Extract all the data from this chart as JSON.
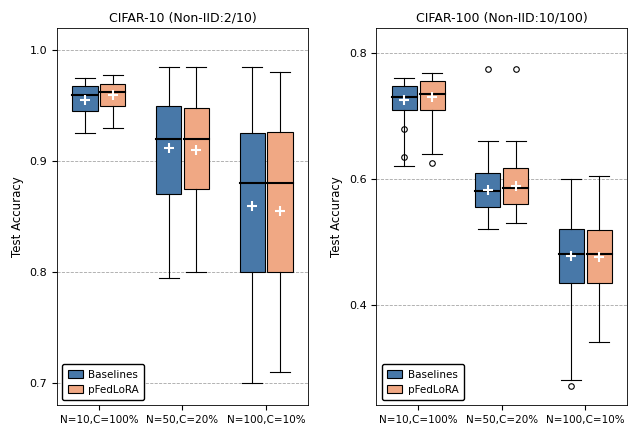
{
  "left_title": "CIFAR-10 (Non-IID:2/10)",
  "right_title": "CIFAR-100 (Non-IID:10/100)",
  "ylabel": "Test Accuracy",
  "xtick_labels": [
    "N=10,C=100%",
    "N=50,C=20%",
    "N=100,C=10%"
  ],
  "baseline_color": "#4878a8",
  "pfedlora_color": "#f0a884",
  "left_ylim": [
    0.68,
    1.02
  ],
  "right_ylim": [
    0.24,
    0.84
  ],
  "left_yticks": [
    0.7,
    0.8,
    0.9,
    1.0
  ],
  "right_yticks": [
    0.4,
    0.6,
    0.8
  ],
  "left": {
    "baselines": [
      {
        "whislo": 0.925,
        "q1": 0.945,
        "med": 0.96,
        "q3": 0.968,
        "whishi": 0.975,
        "mean": 0.955,
        "fliers": []
      },
      {
        "whislo": 0.795,
        "q1": 0.87,
        "med": 0.92,
        "q3": 0.95,
        "whishi": 0.985,
        "mean": 0.912,
        "fliers": []
      },
      {
        "whislo": 0.7,
        "q1": 0.8,
        "med": 0.88,
        "q3": 0.925,
        "whishi": 0.985,
        "mean": 0.86,
        "fliers": []
      }
    ],
    "pfedlora": [
      {
        "whislo": 0.93,
        "q1": 0.95,
        "med": 0.962,
        "q3": 0.97,
        "whishi": 0.978,
        "mean": 0.96,
        "fliers": []
      },
      {
        "whislo": 0.8,
        "q1": 0.875,
        "med": 0.92,
        "q3": 0.948,
        "whishi": 0.985,
        "mean": 0.91,
        "fliers": []
      },
      {
        "whislo": 0.71,
        "q1": 0.8,
        "med": 0.88,
        "q3": 0.926,
        "whishi": 0.98,
        "mean": 0.855,
        "fliers": []
      }
    ]
  },
  "right": {
    "baselines": [
      {
        "whislo": 0.62,
        "q1": 0.71,
        "med": 0.73,
        "q3": 0.748,
        "whishi": 0.76,
        "mean": 0.725,
        "fliers": [
          0.635,
          0.68
        ]
      },
      {
        "whislo": 0.52,
        "q1": 0.555,
        "med": 0.58,
        "q3": 0.61,
        "whishi": 0.66,
        "mean": 0.582,
        "fliers": [
          0.775
        ]
      },
      {
        "whislo": 0.28,
        "q1": 0.435,
        "med": 0.48,
        "q3": 0.52,
        "whishi": 0.6,
        "mean": 0.478,
        "fliers": [
          0.27
        ]
      }
    ],
    "pfedlora": [
      {
        "whislo": 0.64,
        "q1": 0.71,
        "med": 0.735,
        "q3": 0.755,
        "whishi": 0.768,
        "mean": 0.73,
        "fliers": [
          0.625
        ]
      },
      {
        "whislo": 0.53,
        "q1": 0.56,
        "med": 0.585,
        "q3": 0.618,
        "whishi": 0.66,
        "mean": 0.588,
        "fliers": [
          0.775
        ]
      },
      {
        "whislo": 0.34,
        "q1": 0.435,
        "med": 0.48,
        "q3": 0.518,
        "whishi": 0.605,
        "mean": 0.475,
        "fliers": []
      }
    ]
  }
}
